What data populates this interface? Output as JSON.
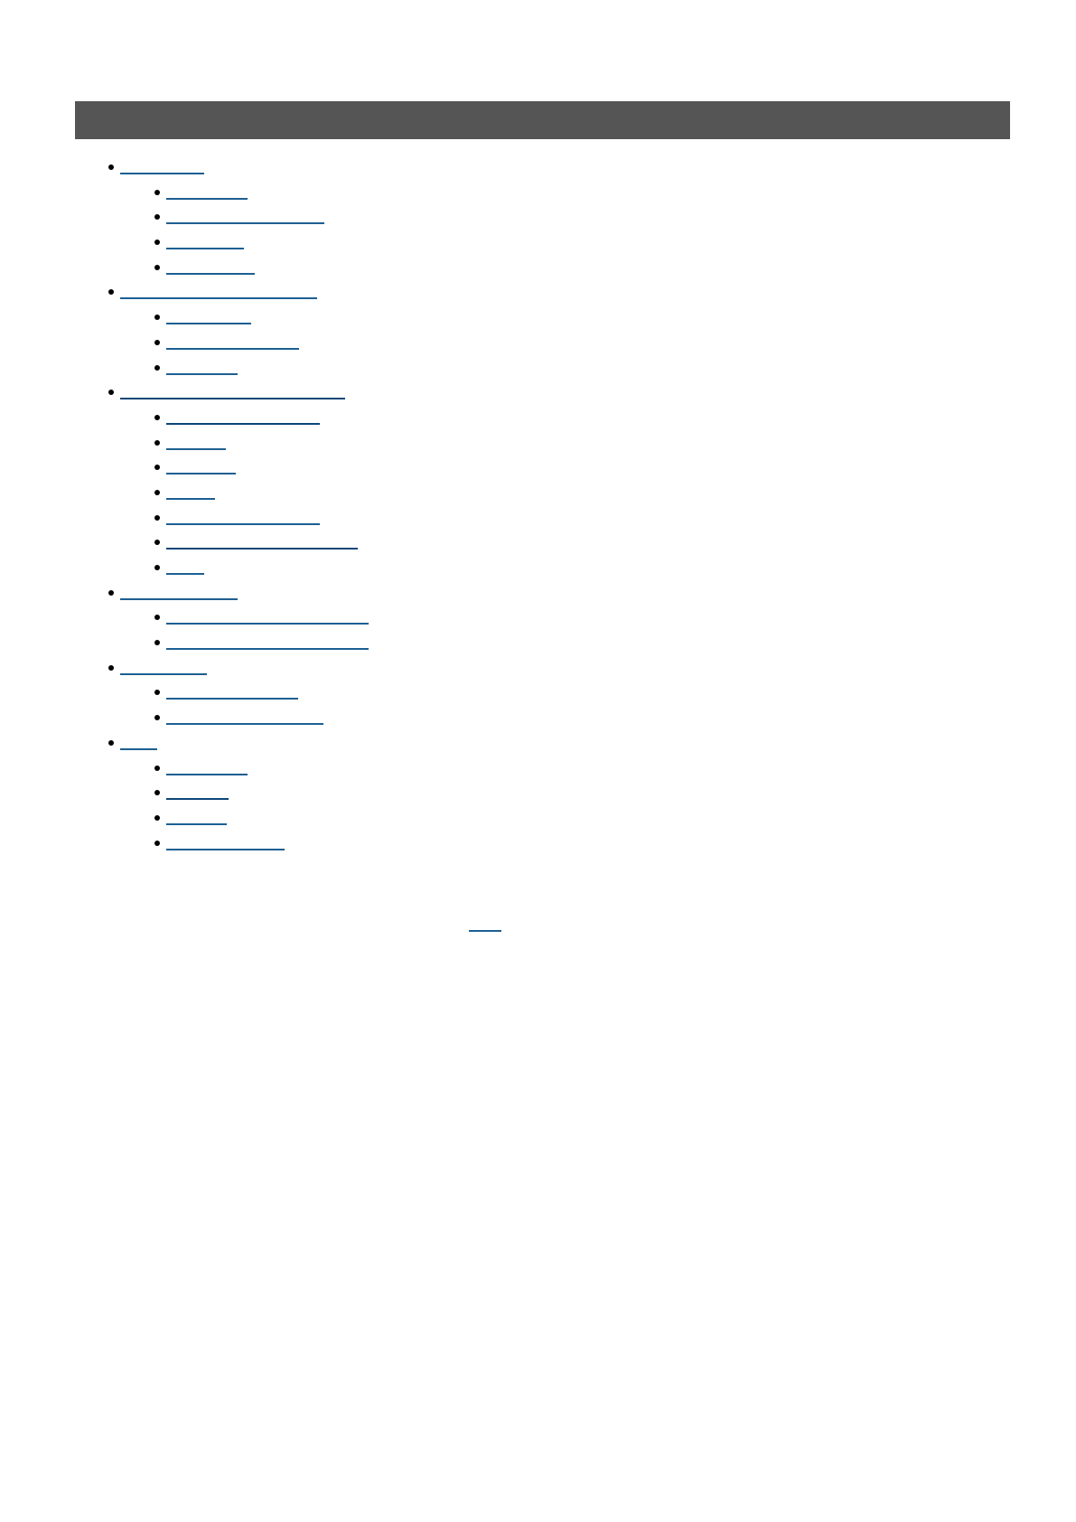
{
  "header": {
    "title": ""
  },
  "colors": {
    "header_bar": "#555555",
    "link": "#1d5f92",
    "link_dark": "#0c4677"
  },
  "toc": [
    {
      "label": "",
      "children": [
        {
          "label": ""
        },
        {
          "label": ""
        },
        {
          "label": ""
        },
        {
          "label": ""
        }
      ]
    },
    {
      "label": "",
      "children": [
        {
          "label": ""
        },
        {
          "label": ""
        },
        {
          "label": ""
        }
      ]
    },
    {
      "label": "",
      "children": [
        {
          "label": ""
        },
        {
          "label": ""
        },
        {
          "label": ""
        },
        {
          "label": ""
        },
        {
          "label": ""
        },
        {
          "label": ""
        },
        {
          "label": ""
        }
      ]
    },
    {
      "label": "",
      "children": [
        {
          "label": ""
        },
        {
          "label": ""
        }
      ]
    },
    {
      "label": "",
      "children": [
        {
          "label": ""
        },
        {
          "label": ""
        }
      ]
    },
    {
      "label": "",
      "children": [
        {
          "label": ""
        },
        {
          "label": ""
        },
        {
          "label": ""
        },
        {
          "label": ""
        }
      ]
    }
  ],
  "footer_link": {
    "label": ""
  }
}
